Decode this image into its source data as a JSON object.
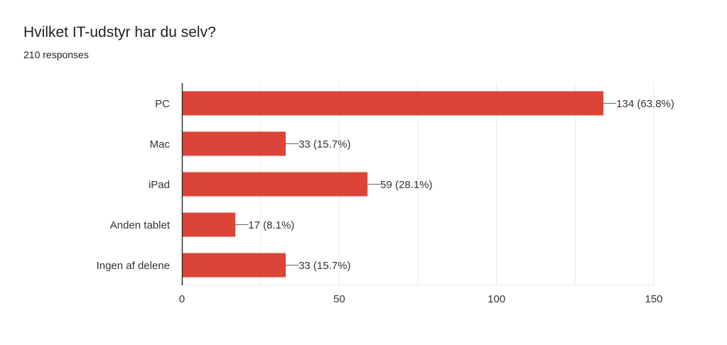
{
  "question": {
    "title": "Hvilket IT-udstyr har du selv?",
    "responses": "210 responses"
  },
  "colors": {
    "bar": "#db4437",
    "grid": "#e9e9e9",
    "axis": "#333333",
    "text": "#202124",
    "label": "#333333"
  },
  "chart_data": {
    "type": "bar",
    "orientation": "horizontal",
    "categories": [
      "PC",
      "Mac",
      "iPad",
      "Anden tablet",
      "Ingen af delene"
    ],
    "values": [
      134,
      33,
      59,
      17,
      33
    ],
    "percentages": [
      "63.8%",
      "15.7%",
      "28.1%",
      "8.1%",
      "15.7%"
    ],
    "data_labels": [
      "134 (63.8%)",
      "33 (15.7%)",
      "59 (28.1%)",
      "17 (8.1%)",
      "33 (15.7%)"
    ],
    "xlim": [
      0,
      150
    ],
    "xticks": [
      0,
      50,
      100,
      150
    ],
    "xtick_labels": [
      "0",
      "50",
      "100",
      "150"
    ],
    "grid": true,
    "legend": "none"
  }
}
